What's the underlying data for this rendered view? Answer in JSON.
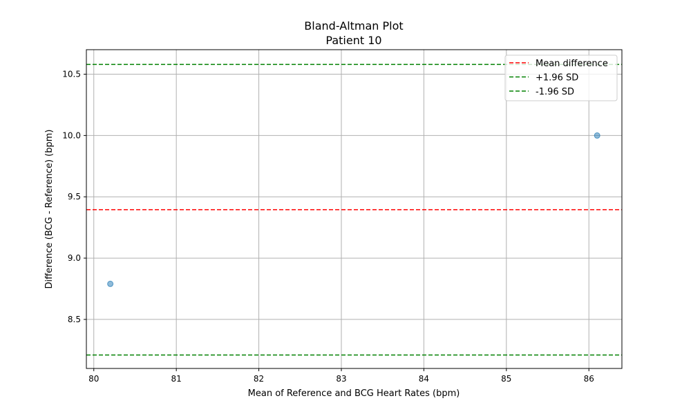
{
  "chart_data": {
    "type": "scatter",
    "title": "Bland-Altman Plot",
    "subtitle": "Patient 10",
    "xlabel": "Mean of Reference and BCG Heart Rates (bpm)",
    "ylabel": "Difference (BCG - Reference) (bpm)",
    "xlim": [
      79.91,
      86.4
    ],
    "ylim": [
      8.1,
      10.7
    ],
    "xticks": [
      80,
      81,
      82,
      83,
      84,
      85,
      86
    ],
    "yticks": [
      8.5,
      9.0,
      9.5,
      10.0,
      10.5
    ],
    "grid": true,
    "legend_position": "top-right",
    "series": [
      {
        "x": [
          80.2,
          86.1
        ],
        "y": [
          8.79,
          10.0
        ],
        "color": "#1f77b4"
      }
    ],
    "reference_lines": [
      {
        "label": "Mean difference",
        "y": 9.395,
        "color": "#ff0000",
        "style": "dashed"
      },
      {
        "label": "+1.96 SD",
        "y": 10.58,
        "color": "#008000",
        "style": "dashed"
      },
      {
        "label": "-1.96 SD",
        "y": 8.21,
        "color": "#008000",
        "style": "dashed"
      }
    ]
  }
}
